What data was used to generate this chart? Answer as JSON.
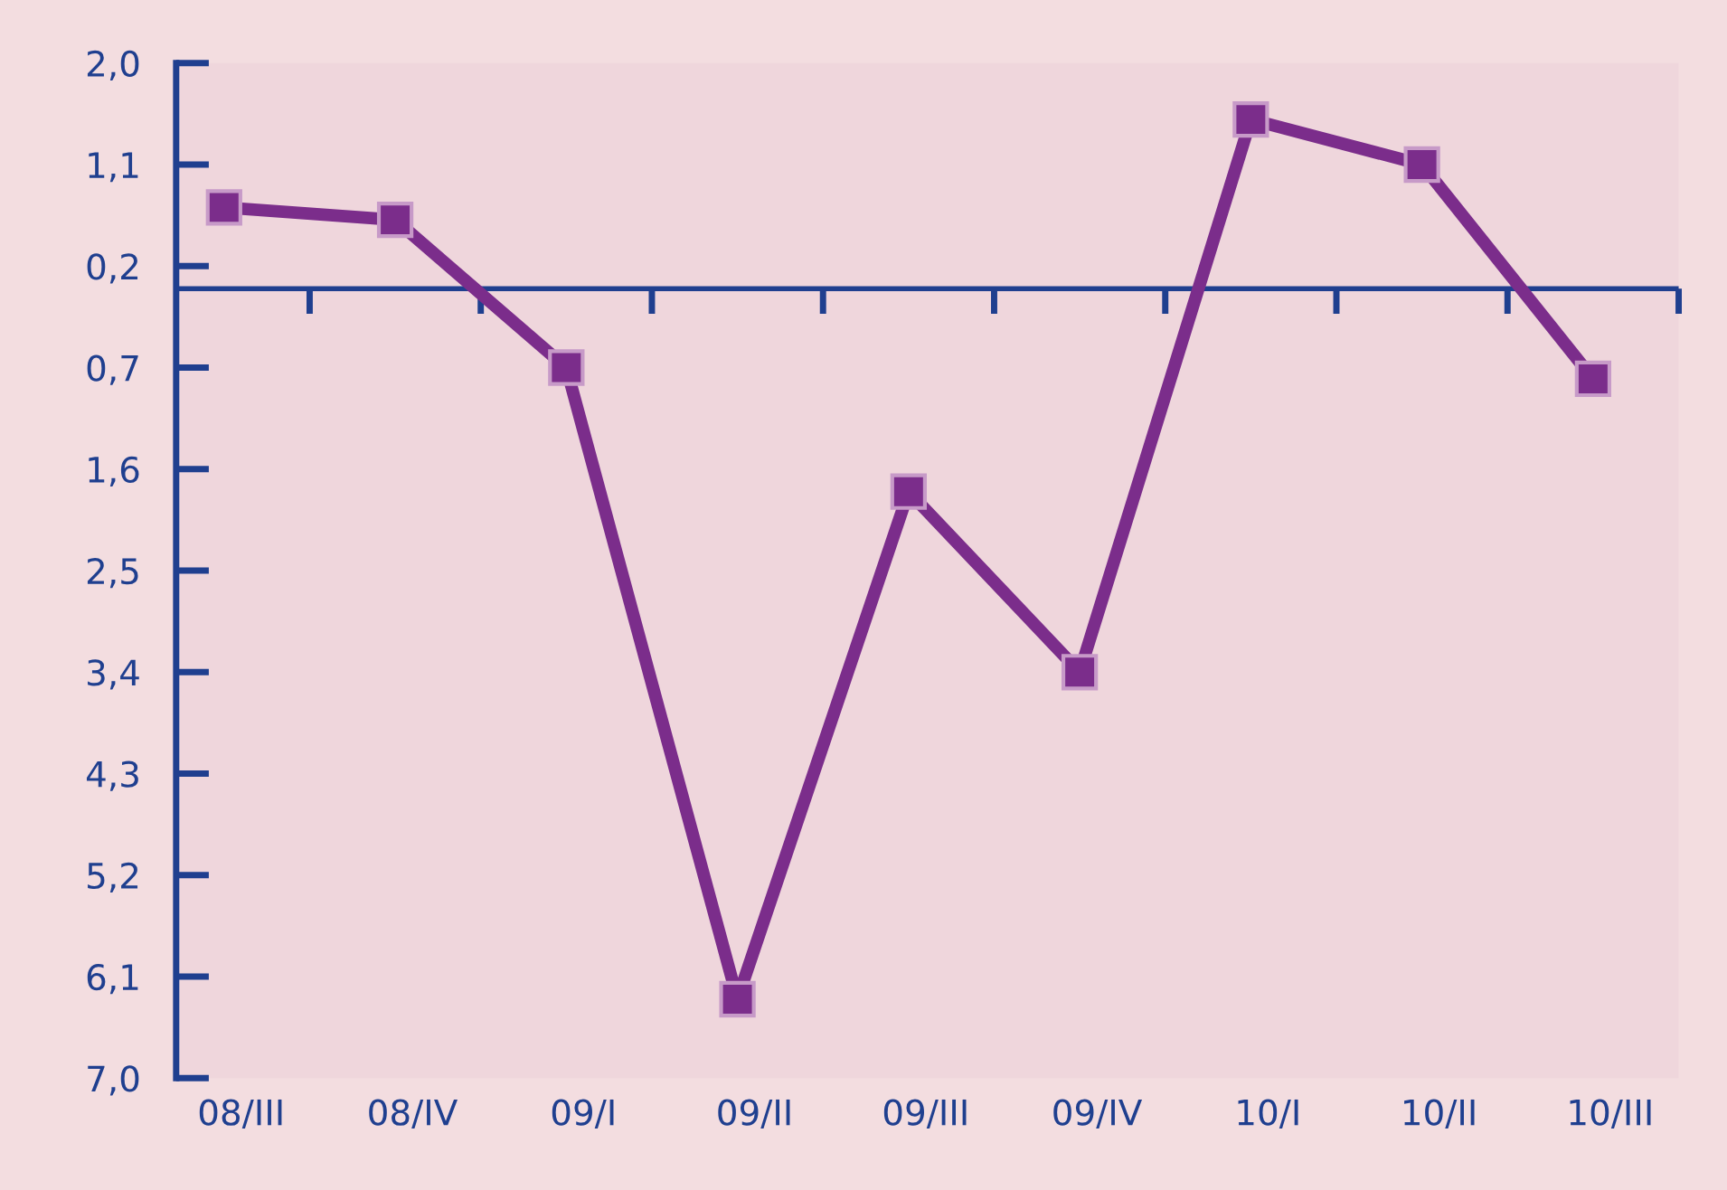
{
  "chart_data": {
    "type": "line",
    "categories": [
      "08/III",
      "08/IV",
      "09/I",
      "09/II",
      "09/III",
      "09/IV",
      "10/I",
      "10/II",
      "10/III"
    ],
    "series": [
      {
        "color": "#7b2d8b",
        "values": [
          0.72,
          0.61,
          -0.7,
          -6.3,
          -1.8,
          -3.4,
          1.5,
          1.1,
          -0.8
        ]
      }
    ],
    "marker": "square",
    "ylim": [
      -7.0,
      2.0
    ],
    "yticks": [
      {
        "value": 2.0,
        "label": "2,0"
      },
      {
        "value": 1.1,
        "label": "1,1"
      },
      {
        "value": 0.2,
        "label": "0,2"
      },
      {
        "value": -0.7,
        "label": "0,7"
      },
      {
        "value": -1.6,
        "label": "1,6"
      },
      {
        "value": -2.5,
        "label": "2,5"
      },
      {
        "value": -3.4,
        "label": "3,4"
      },
      {
        "value": -4.3,
        "label": "4,3"
      },
      {
        "value": -5.2,
        "label": "5,2"
      },
      {
        "value": -6.1,
        "label": "6,1"
      },
      {
        "value": -7.0,
        "label": "7,0"
      }
    ],
    "ref_lines": [
      {
        "axis": "y",
        "value": 0,
        "color": "#1f3f8f",
        "line_style": "solid"
      }
    ],
    "grid": false,
    "legend": false
  }
}
